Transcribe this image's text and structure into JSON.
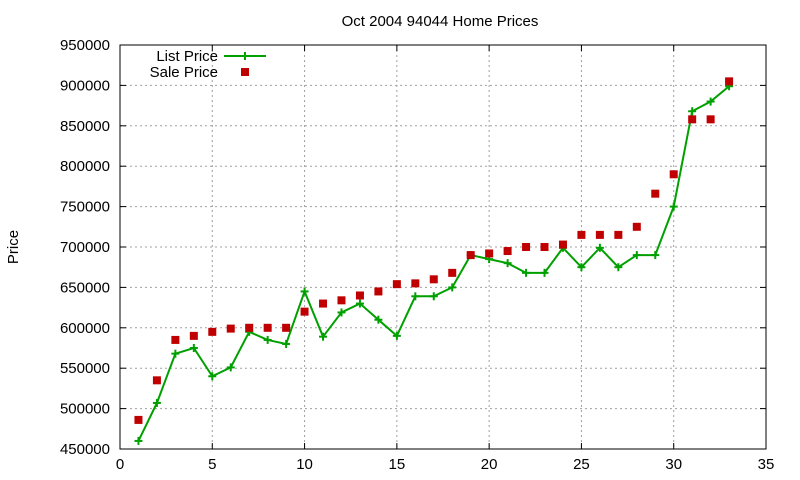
{
  "chart_data": {
    "type": "line",
    "title": "Oct 2004 94044 Home Prices",
    "xlabel": "",
    "ylabel": "Price",
    "xlim": [
      0,
      35
    ],
    "ylim": [
      450000,
      950000
    ],
    "x_ticks": [
      0,
      5,
      10,
      15,
      20,
      25,
      30,
      35
    ],
    "y_ticks": [
      450000,
      500000,
      550000,
      600000,
      650000,
      700000,
      750000,
      800000,
      850000,
      900000,
      950000
    ],
    "grid": true,
    "legend_position": "top-left",
    "x": [
      1,
      2,
      3,
      4,
      5,
      6,
      7,
      8,
      9,
      10,
      11,
      12,
      13,
      14,
      15,
      16,
      17,
      18,
      19,
      20,
      21,
      22,
      23,
      24,
      25,
      26,
      27,
      28,
      29,
      30,
      31,
      32,
      33
    ],
    "series": [
      {
        "name": "List Price",
        "style": "line+cross",
        "color": "#00a000",
        "values": [
          460000,
          507000,
          568000,
          575000,
          540000,
          551000,
          595000,
          585000,
          580000,
          645000,
          589000,
          619000,
          630000,
          610000,
          590000,
          639000,
          639000,
          650000,
          690000,
          685000,
          680000,
          668000,
          668000,
          699000,
          675000,
          699000,
          675000,
          690000,
          690000,
          750000,
          868000,
          880000,
          899000
        ]
      },
      {
        "name": "Sale Price",
        "style": "square",
        "color": "#c00000",
        "values": [
          486000,
          535000,
          585000,
          590000,
          595000,
          599000,
          600000,
          600000,
          600000,
          620000,
          630000,
          634000,
          640000,
          645000,
          654000,
          655000,
          660000,
          668000,
          690000,
          692000,
          695000,
          700000,
          700000,
          703000,
          715000,
          715000,
          715000,
          725000,
          766000,
          790000,
          858000,
          858000,
          905000
        ]
      }
    ]
  }
}
